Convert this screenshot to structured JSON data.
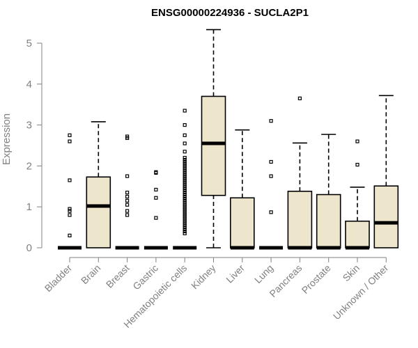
{
  "chart_data": {
    "type": "box",
    "title": "ENSG00000224936 - SUCLA2P1",
    "xlabel": "",
    "ylabel": "Expression",
    "ylim": [
      0,
      5.35
    ],
    "yticks": [
      "0",
      "1",
      "2",
      "3",
      "4",
      "5"
    ],
    "categories": [
      "Bladder",
      "Brain",
      "Breast",
      "Gastric",
      "Hematopoietic cells",
      "Kidney",
      "Liver",
      "Lung",
      "Pancreas",
      "Prostate",
      "Skin",
      "Unknown / Other"
    ],
    "boxes": [
      {
        "name": "Bladder",
        "min": 0,
        "q1": 0,
        "median": 0,
        "q3": 0,
        "max": 0,
        "outliers": [
          0.3,
          0.8,
          0.9,
          0.95,
          1.65,
          2.6,
          2.75
        ]
      },
      {
        "name": "Brain",
        "min": 0,
        "q1": 0,
        "median": 1.02,
        "q3": 1.73,
        "max": 3.08,
        "outliers": []
      },
      {
        "name": "Breast",
        "min": 0,
        "q1": 0,
        "median": 0,
        "q3": 0,
        "max": 0,
        "outliers": [
          0.8,
          0.9,
          1.05,
          1.15,
          1.25,
          1.35,
          1.75,
          2.68,
          2.72
        ]
      },
      {
        "name": "Gastric",
        "min": 0,
        "q1": 0,
        "median": 0,
        "q3": 0,
        "max": 0,
        "outliers": [
          0.73,
          1.22,
          1.42,
          1.83,
          1.85
        ]
      },
      {
        "name": "Hematopoietic cells",
        "min": 0,
        "q1": 0,
        "median": 0,
        "q3": 0,
        "max": 0,
        "outliers": [
          0.35,
          0.4,
          0.45,
          0.5,
          0.55,
          0.6,
          0.65,
          0.7,
          0.75,
          0.8,
          0.85,
          0.9,
          0.95,
          1.0,
          1.05,
          1.1,
          1.15,
          1.2,
          1.25,
          1.3,
          1.35,
          1.4,
          1.45,
          1.5,
          1.55,
          1.6,
          1.65,
          1.7,
          1.75,
          1.8,
          1.85,
          1.9,
          1.95,
          2.0,
          2.05,
          2.1,
          2.15,
          2.2,
          2.35,
          2.55,
          2.75,
          3.0,
          3.35
        ]
      },
      {
        "name": "Kidney",
        "min": 0,
        "q1": 1.28,
        "median": 2.55,
        "q3": 3.7,
        "max": 5.33,
        "outliers": []
      },
      {
        "name": "Liver",
        "min": 0,
        "q1": 0,
        "median": 0,
        "q3": 1.22,
        "max": 2.88,
        "outliers": []
      },
      {
        "name": "Lung",
        "min": 0,
        "q1": 0,
        "median": 0,
        "q3": 0,
        "max": 0,
        "outliers": [
          0.87,
          1.75,
          2.1,
          3.1
        ]
      },
      {
        "name": "Pancreas",
        "min": 0,
        "q1": 0,
        "median": 0,
        "q3": 1.38,
        "max": 2.56,
        "outliers": [
          3.65
        ]
      },
      {
        "name": "Prostate",
        "min": 0,
        "q1": 0,
        "median": 0,
        "q3": 1.3,
        "max": 2.77,
        "outliers": []
      },
      {
        "name": "Skin",
        "min": 0,
        "q1": 0,
        "median": 0,
        "q3": 0.65,
        "max": 1.48,
        "outliers": [
          2.03,
          2.6
        ]
      },
      {
        "name": "Unknown / Other",
        "min": 0,
        "q1": 0,
        "median": 0.61,
        "q3": 1.51,
        "max": 3.72,
        "outliers": []
      }
    ]
  }
}
